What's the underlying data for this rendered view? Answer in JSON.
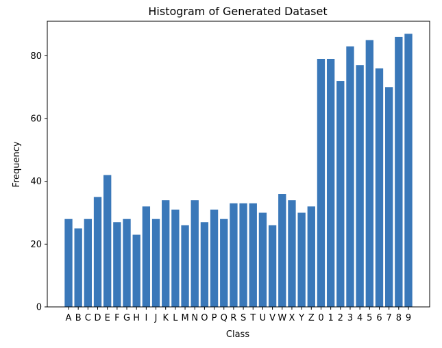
{
  "chart_data": {
    "type": "bar",
    "title": "Histogram of Generated Dataset",
    "xlabel": "Class",
    "ylabel": "Frequency",
    "ylim": [
      0,
      91
    ],
    "yticks": [
      0,
      20,
      40,
      60,
      80
    ],
    "bar_color": "#3a78b9",
    "categories": [
      "A",
      "B",
      "C",
      "D",
      "E",
      "F",
      "G",
      "H",
      "I",
      "J",
      "K",
      "L",
      "M",
      "N",
      "O",
      "P",
      "Q",
      "R",
      "S",
      "T",
      "U",
      "V",
      "W",
      "X",
      "Y",
      "Z",
      "0",
      "1",
      "2",
      "3",
      "4",
      "5",
      "6",
      "7",
      "8",
      "9"
    ],
    "values": [
      28,
      25,
      28,
      35,
      42,
      27,
      28,
      23,
      32,
      28,
      34,
      31,
      26,
      34,
      27,
      31,
      28,
      33,
      33,
      33,
      30,
      26,
      36,
      34,
      30,
      32,
      79,
      79,
      72,
      83,
      77,
      85,
      76,
      70,
      86,
      87
    ]
  }
}
